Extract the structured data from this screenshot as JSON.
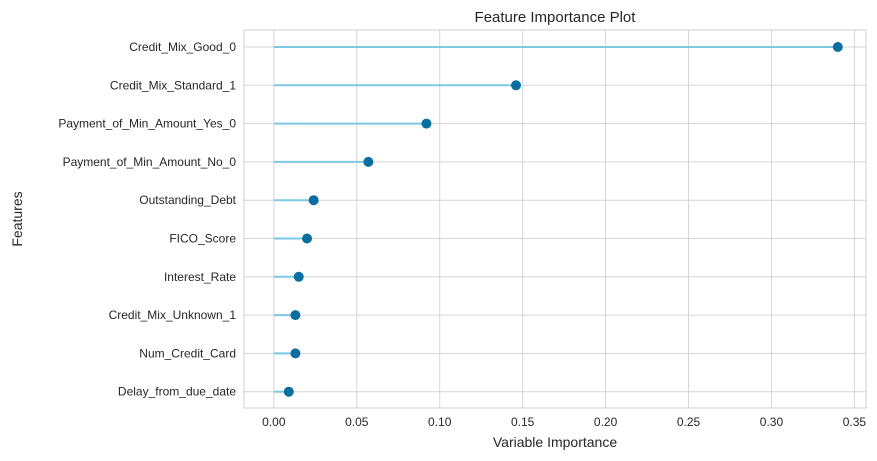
{
  "chart_data": {
    "type": "lollipop",
    "title": "Feature Importance Plot",
    "xlabel": "Variable Importance",
    "ylabel": "Features",
    "xlim": [
      -0.018,
      0.357
    ],
    "xticks": [
      0.0,
      0.05,
      0.1,
      0.15,
      0.2,
      0.25,
      0.3,
      0.35
    ],
    "xtick_labels": [
      "0.00",
      "0.05",
      "0.10",
      "0.15",
      "0.20",
      "0.25",
      "0.30",
      "0.35"
    ],
    "grid": true,
    "categories": [
      "Credit_Mix_Good_0",
      "Credit_Mix_Standard_1",
      "Payment_of_Min_Amount_Yes_0",
      "Payment_of_Min_Amount_No_0",
      "Outstanding_Debt",
      "FICO_Score",
      "Interest_Rate",
      "Credit_Mix_Unknown_1",
      "Num_Credit_Card",
      "Delay_from_due_date"
    ],
    "values": [
      0.34,
      0.146,
      0.092,
      0.057,
      0.024,
      0.02,
      0.015,
      0.013,
      0.013,
      0.009
    ],
    "colors": {
      "stem": "#7ec8e3",
      "marker": "#0a6fa0",
      "grid": "#d6d6d6",
      "spine": "#cfcfcf"
    }
  }
}
